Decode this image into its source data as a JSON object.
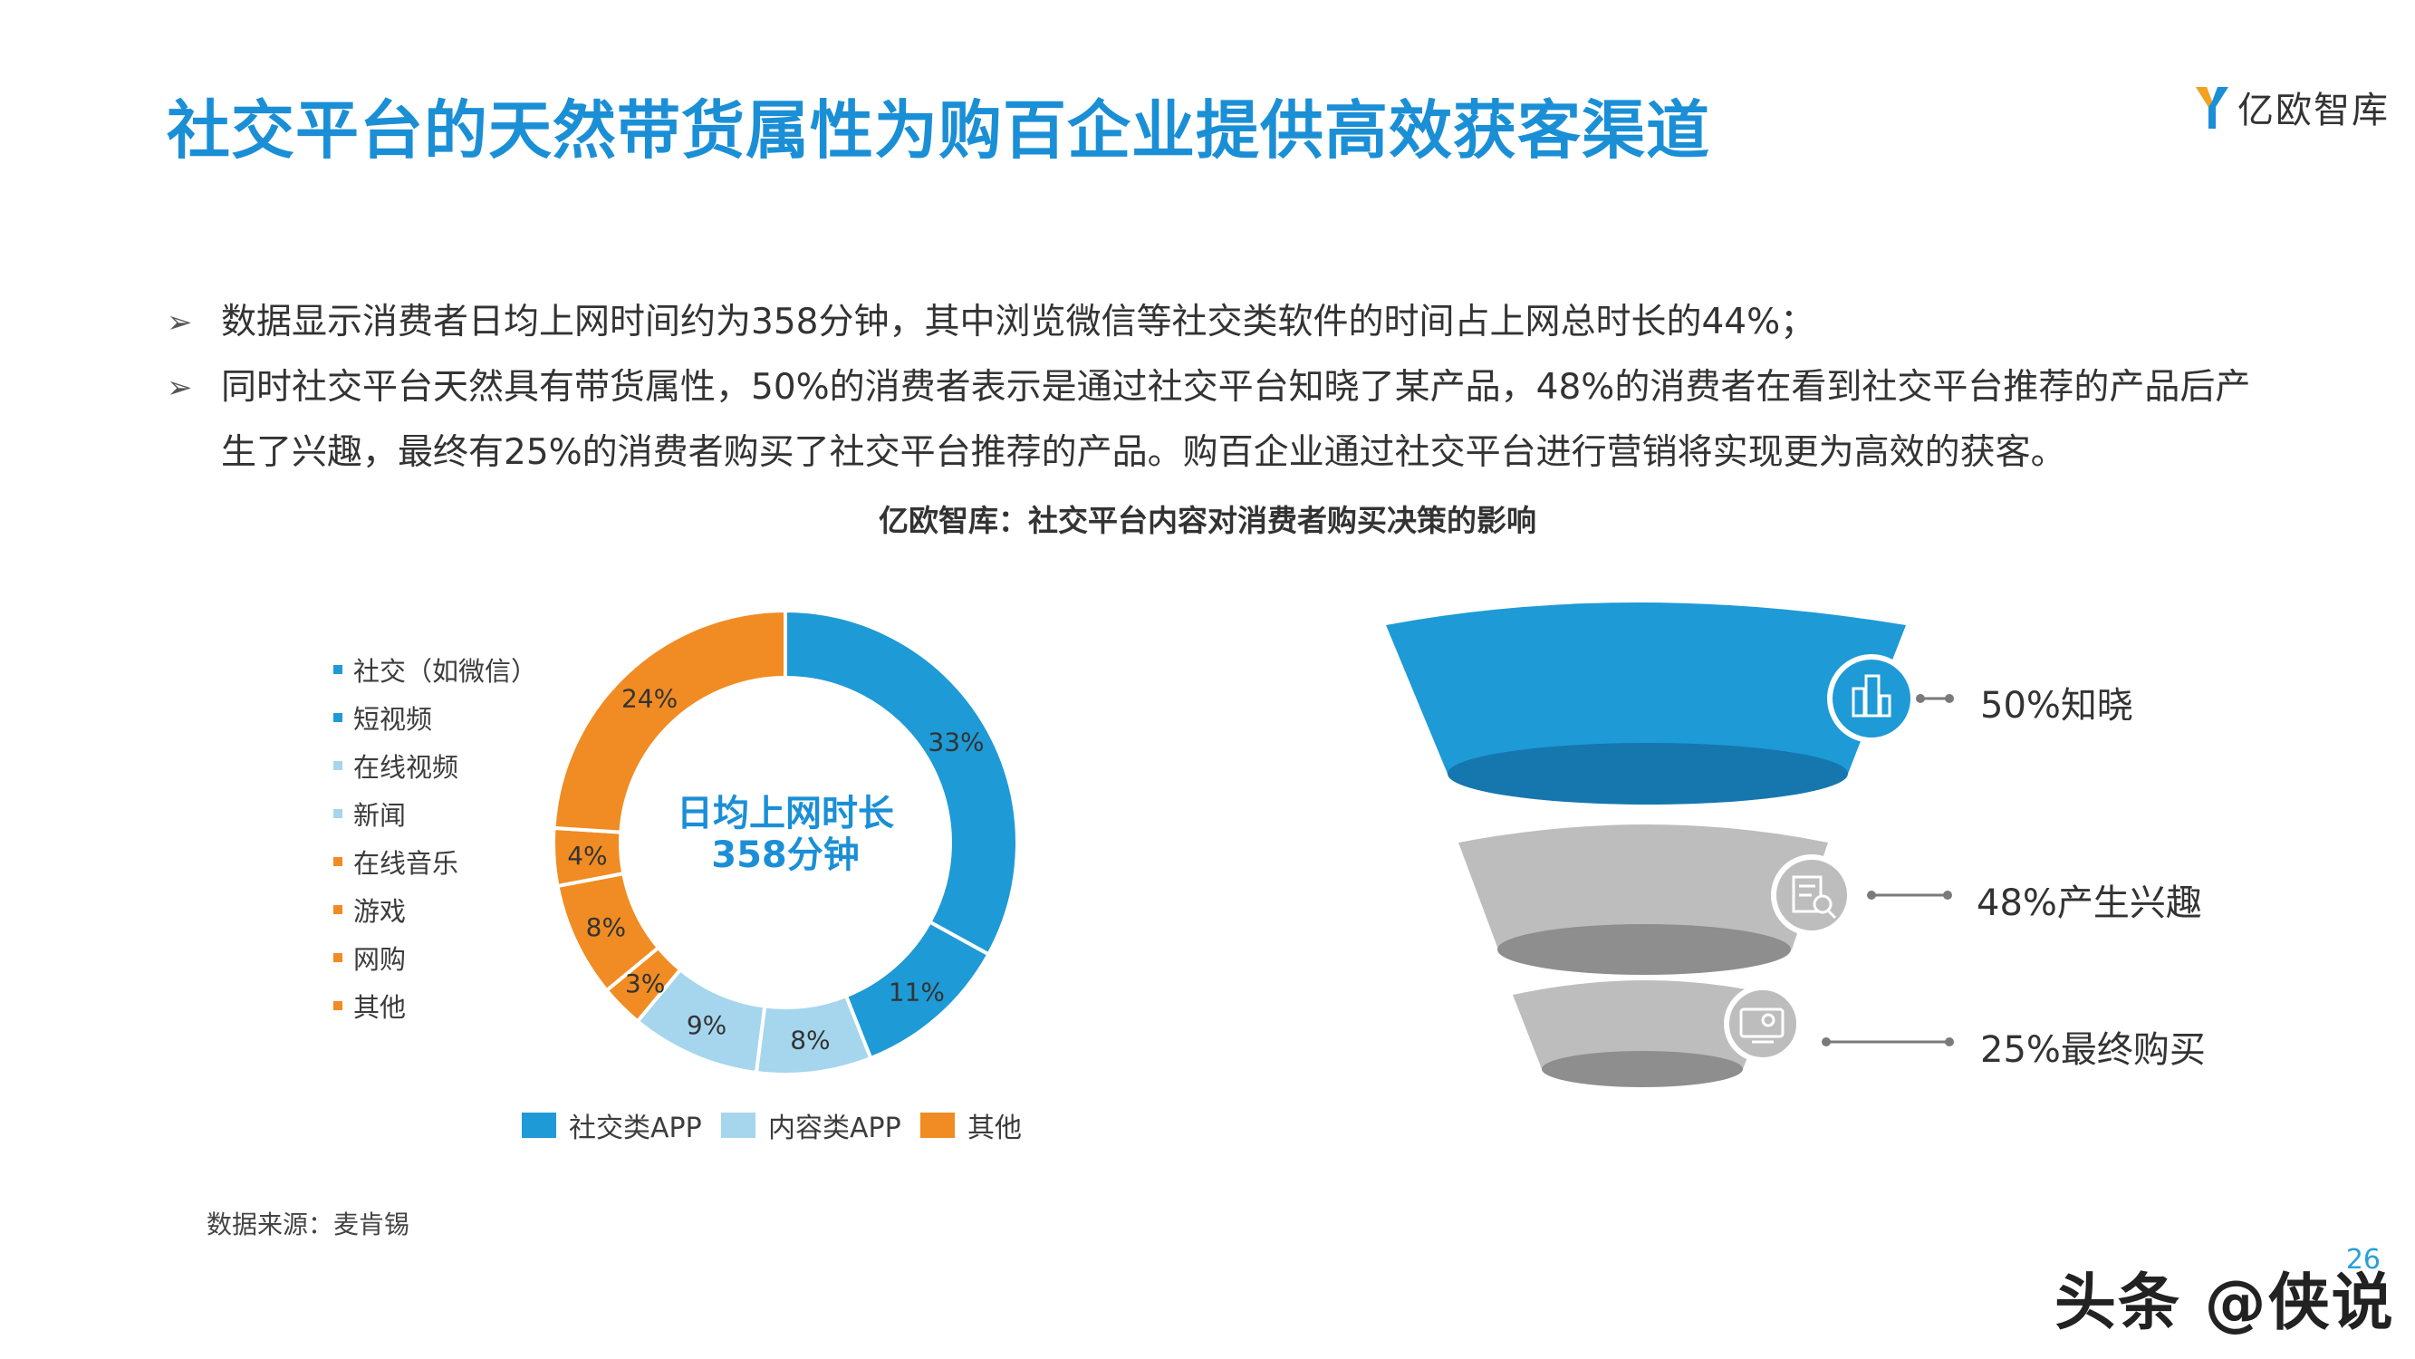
{
  "header": {
    "title": "社交平台的天然带货属性为购百企业提供高效获客渠道",
    "logo_text": "亿欧智库"
  },
  "bullets": [
    {
      "marker": "➢",
      "lines": [
        "数据显示消费者日均上网时间约为358分钟，其中浏览微信等社交类软件的时间占上网总时长的44%；"
      ]
    },
    {
      "marker": "➢",
      "lines": [
        "同时社交平台天然具有带货属性，50%的消费者表示是通过社交平台知晓了某产品，48%的消费者在看到社交平台推荐的产品后产",
        "生了兴趣，最终有25%的消费者购买了社交平台推荐的产品。购百企业通过社交平台进行营销将实现更为高效的获客。"
      ]
    }
  ],
  "chart_title": "亿欧智库：社交平台内容对消费者购买决策的影响",
  "chart_data": [
    {
      "type": "pie",
      "variant": "donut",
      "center_label": [
        "日均上网时长",
        "358分钟"
      ],
      "slices": [
        {
          "label": "社交（如微信）",
          "value": 33,
          "display": "33%",
          "group": "社交类APP",
          "color": "#1e9ad6"
        },
        {
          "label": "短视频",
          "value": 11,
          "display": "11%",
          "group": "社交类APP",
          "color": "#1e9ad6"
        },
        {
          "label": "在线视频",
          "value": 8,
          "display": "8%",
          "group": "内容类APP",
          "color": "#a5d6ee"
        },
        {
          "label": "新闻",
          "value": 9,
          "display": "9%",
          "group": "内容类APP",
          "color": "#a5d6ee"
        },
        {
          "label": "在线音乐",
          "value": 3,
          "display": "3%",
          "group": "其他",
          "color": "#f08c23"
        },
        {
          "label": "游戏",
          "value": 8,
          "display": "8%",
          "group": "其他",
          "color": "#f08c23"
        },
        {
          "label": "网购",
          "value": 4,
          "display": "4%",
          "group": "其他",
          "color": "#f08c23"
        },
        {
          "label": "其他",
          "value": 24,
          "display": "24%",
          "group": "其他",
          "color": "#f08c23"
        }
      ],
      "legend_placement": "left",
      "group_legend": [
        {
          "name": "社交类APP",
          "color": "#1e9ad6"
        },
        {
          "name": "内容类APP",
          "color": "#a5d6ee"
        },
        {
          "name": "其他",
          "color": "#f08c23"
        }
      ]
    },
    {
      "type": "funnel",
      "stages": [
        {
          "value": 50,
          "label": "50%知晓",
          "icon": "buildings-icon",
          "color": "#1e9ad6"
        },
        {
          "value": 48,
          "label": "48%产生兴趣",
          "icon": "document-search-icon",
          "color": "#bdbdbd"
        },
        {
          "value": 25,
          "label": "25%最终购买",
          "icon": "monitor-icon",
          "color": "#bdbdbd"
        }
      ]
    }
  ],
  "footer": {
    "source": "数据来源：麦肯锡",
    "page_number": "26",
    "watermark": "头条 @侠说"
  }
}
